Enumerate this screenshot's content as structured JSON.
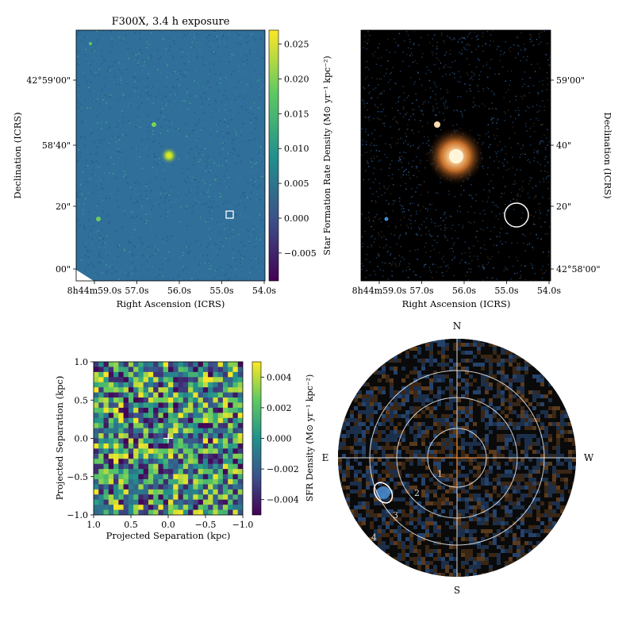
{
  "colors": {
    "viridis_low": "#440154",
    "viridis_mid": "#21918c",
    "viridis_high": "#fde725",
    "image_bg_blue": "#2f6f9a",
    "rgb_bg": "#000000",
    "galaxy_core": "#fff2cc",
    "galaxy_halo": "#d27a2a",
    "overlay": "#ffffff",
    "crosshair_orange": "#e08a3a"
  },
  "chart_data": [
    {
      "type": "heatmap",
      "panel": "top-left",
      "title": "F300X, 3.4 h exposure",
      "xlabel": "Right Ascension (ICRS)",
      "ylabel": "Declination (ICRS)",
      "xticks": [
        "8h44m59.0s",
        "57.0s",
        "56.0s",
        "55.0s",
        "54.0s"
      ],
      "yticks": [
        "42°59'00\"",
        "58'40\"",
        "20\"",
        "00\""
      ],
      "colorbar": {
        "label": "Star Formation Rate Density (M⊙ yr⁻¹ kpc⁻²)",
        "ticks": [
          "0.025",
          "0.020",
          "0.015",
          "0.010",
          "0.005",
          "0.000",
          "−0.005"
        ],
        "range": [
          -0.009,
          0.027
        ]
      },
      "markers": [
        {
          "shape": "square",
          "ra": "8h44m54.85s",
          "dec": "42°58'17\""
        }
      ]
    },
    {
      "type": "heatmap",
      "panel": "top-right",
      "xlabel": "Right Ascension (ICRS)",
      "ylabel": "Declination (ICRS)",
      "xticks": [
        "8h44m59.0s",
        "57.0s",
        "56.0s",
        "55.0s",
        "54.0s"
      ],
      "yticks": [
        "59'00\"",
        "40\"",
        "20\"",
        "42°58'00\""
      ],
      "markers": [
        {
          "shape": "circle",
          "ra": "8h44m54.85s",
          "dec": "42°58'17\""
        }
      ]
    },
    {
      "type": "heatmap",
      "panel": "bottom-left",
      "xlabel": "Projected Separation (kpc)",
      "ylabel": "Projected Separation (kpc)",
      "xticks": [
        "1.0",
        "0.5",
        "0.0",
        "−0.5",
        "−1.0"
      ],
      "yticks": [
        "1.0",
        "0.5",
        "0.0",
        "−0.5",
        "−1.0"
      ],
      "xlim": [
        1.0,
        -1.0
      ],
      "ylim": [
        -1.0,
        1.0
      ],
      "colorbar": {
        "label": "SFR Density (M⊙ yr⁻¹ kpc⁻²)",
        "ticks": [
          "0.004",
          "0.002",
          "0.000",
          "−0.002",
          "−0.004"
        ],
        "range": [
          -0.005,
          0.005
        ]
      },
      "center_marker": [
        0.0,
        0.0
      ]
    },
    {
      "type": "heatmap",
      "panel": "bottom-right",
      "compass": [
        "N",
        "E",
        "W",
        "S"
      ],
      "ring_labels": [
        "1",
        "2",
        "3",
        "4"
      ]
    }
  ]
}
